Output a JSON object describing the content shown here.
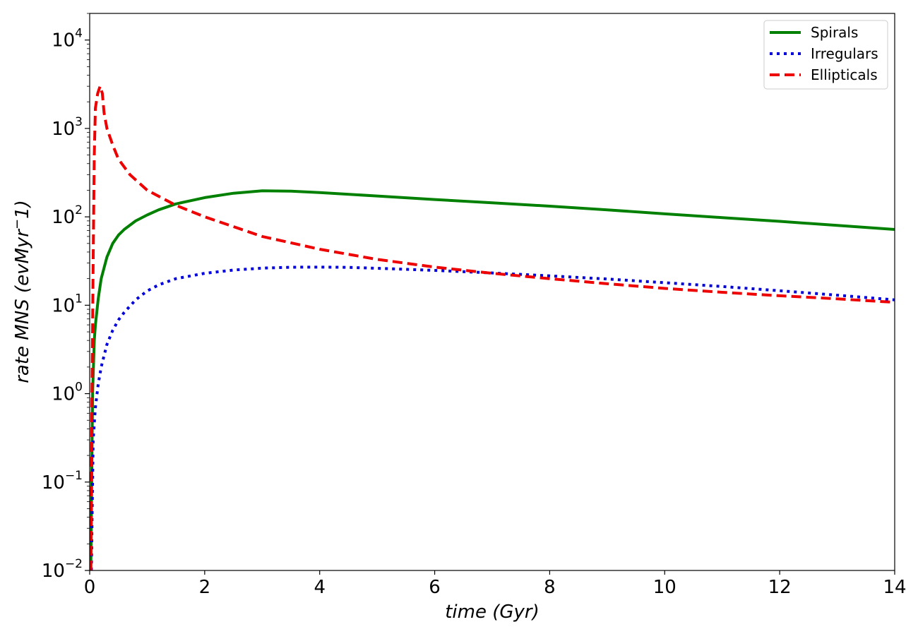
{
  "chart_data": {
    "type": "line",
    "xlabel": "time (Gyr)",
    "ylabel": "rate MNS (evMyr^-1)",
    "ylabel_parts": {
      "prefix": "rate MNS (evMyr",
      "sup": "−",
      "suffix": "1)"
    },
    "xlim": [
      0,
      14
    ],
    "ylim": [
      0.01,
      20000
    ],
    "yscale": "log",
    "x_ticks": [
      0,
      2,
      4,
      6,
      8,
      10,
      12,
      14
    ],
    "x_tick_labels": [
      "0",
      "2",
      "4",
      "6",
      "8",
      "10",
      "12",
      "14"
    ],
    "y_ticks": [
      0.01,
      0.1,
      1,
      10,
      100,
      1000,
      10000
    ],
    "y_tick_labels": [
      {
        "base": "10",
        "exp": "−2"
      },
      {
        "base": "10",
        "exp": "−1"
      },
      {
        "base": "10",
        "exp": "0"
      },
      {
        "base": "10",
        "exp": "1"
      },
      {
        "base": "10",
        "exp": "2"
      },
      {
        "base": "10",
        "exp": "3"
      },
      {
        "base": "10",
        "exp": "4"
      }
    ],
    "grid": false,
    "legend_position": "top-right",
    "series": [
      {
        "name": "Spirals",
        "color": "#008000",
        "style": "solid",
        "x": [
          0.02,
          0.05,
          0.08,
          0.1,
          0.15,
          0.2,
          0.3,
          0.4,
          0.5,
          0.6,
          0.8,
          1.0,
          1.2,
          1.5,
          2.0,
          2.5,
          3.0,
          3.5,
          4.0,
          5.0,
          6.0,
          7.0,
          8.0,
          9.0,
          10.0,
          11.0,
          12.0,
          13.0,
          14.0
        ],
        "y": [
          0.01,
          1.0,
          4.0,
          6.0,
          12,
          20,
          35,
          50,
          62,
          72,
          90,
          105,
          120,
          140,
          165,
          185,
          197,
          195,
          188,
          172,
          157,
          144,
          132,
          120,
          108,
          98,
          89,
          80,
          72
        ]
      },
      {
        "name": "Irregulars",
        "color": "#0000dd",
        "style": "dotted",
        "x": [
          0.03,
          0.06,
          0.1,
          0.15,
          0.2,
          0.3,
          0.4,
          0.5,
          0.6,
          0.8,
          1.0,
          1.2,
          1.5,
          2.0,
          2.5,
          3.0,
          3.5,
          4.0,
          4.5,
          5.0,
          6.0,
          7.0,
          8.0,
          9.0,
          10.0,
          11.0,
          12.0,
          13.0,
          14.0
        ],
        "y": [
          0.01,
          0.3,
          0.7,
          1.3,
          2.0,
          3.6,
          5.2,
          6.8,
          8.3,
          11.5,
          14.5,
          17,
          20,
          23,
          25,
          26.3,
          26.9,
          27.0,
          26.8,
          26.2,
          24.8,
          23.2,
          21.5,
          19.8,
          18.0,
          16.3,
          14.6,
          13.0,
          11.5
        ]
      },
      {
        "name": "Ellipticals",
        "color": "#ee0000",
        "style": "dashed",
        "x": [
          0.02,
          0.04,
          0.06,
          0.08,
          0.1,
          0.14,
          0.18,
          0.22,
          0.25,
          0.3,
          0.4,
          0.5,
          0.7,
          1.0,
          1.5,
          2.0,
          3.0,
          4.0,
          5.0,
          6.0,
          7.0,
          8.0,
          9.0,
          10.0,
          11.0,
          12.0,
          13.0,
          14.0
        ],
        "y": [
          0.01,
          1.0,
          30,
          500,
          1700,
          2500,
          3000,
          2500,
          1500,
          1000,
          650,
          450,
          300,
          200,
          135,
          100,
          60,
          43,
          33,
          27,
          23,
          20,
          17.5,
          15.5,
          14,
          12.8,
          11.8,
          10.8
        ]
      }
    ]
  }
}
